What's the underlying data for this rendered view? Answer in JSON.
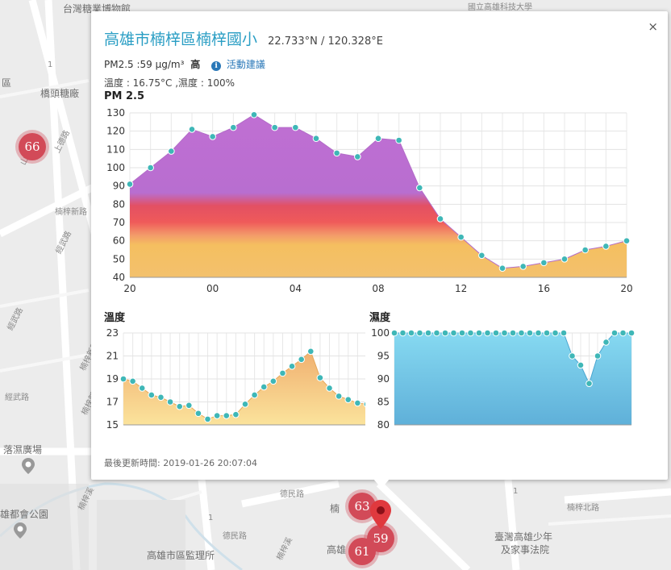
{
  "map": {
    "labels": [
      "台灣糖業博物館",
      "橋頭糖廠",
      "區",
      "上德路",
      "山德路",
      "德民路",
      "德民路",
      "楠梓溪",
      "楠梓溪",
      "落濕廣場",
      "雄都會公園",
      "高雄市區監理所",
      "臺灣高雄少年",
      "及家事法院",
      "高雄",
      "楠",
      "國立高雄科技大學",
      "楠梓北路",
      "經武路",
      "經武路",
      "經武路",
      "楠梓新路",
      "楠梓新路",
      "楠梓新路",
      "1",
      "1",
      "1"
    ],
    "clusters": [
      "66",
      "63",
      "59",
      "61"
    ]
  },
  "popup": {
    "close_label": "×",
    "site_name": "高雄市楠梓區楠梓國小",
    "coords": "22.733°N / 120.328°E",
    "pm_text": "PM2.5 :59 μg/m³",
    "pm_level": "高",
    "info_icon": "i",
    "advice_link": "活動建議",
    "weather_text": "溫度 : 16.75°C ,濕度 : 100%",
    "pm_heading": "PM 2.5",
    "temp_heading": "溫度",
    "hum_heading": "濕度",
    "updated_text": "最後更新時間: 2019-01-26 20:07:04"
  },
  "chart_data": [
    {
      "type": "area",
      "title": "PM 2.5",
      "x_tick_labels": [
        "20",
        "00",
        "04",
        "08",
        "12",
        "16",
        "20"
      ],
      "x_hours": [
        20,
        21,
        22,
        23,
        0,
        1,
        2,
        3,
        4,
        5,
        6,
        7,
        8,
        9,
        10,
        11,
        12,
        13,
        14,
        15,
        16,
        17,
        18,
        19,
        20
      ],
      "values": [
        91,
        100,
        109,
        121,
        117,
        122,
        129,
        122,
        122,
        116,
        108,
        106,
        116,
        115,
        89,
        72,
        62,
        52,
        45,
        46,
        48,
        50,
        55,
        57,
        60
      ],
      "ylim": [
        40,
        130
      ],
      "y_ticks": [
        40,
        50,
        60,
        70,
        80,
        90,
        100,
        110,
        120,
        130
      ],
      "color": "#c278d0"
    },
    {
      "type": "area",
      "title": "溫度",
      "values": [
        19,
        18.8,
        18.2,
        17.6,
        17.4,
        17,
        16.6,
        16.7,
        16,
        15.5,
        15.8,
        15.8,
        15.9,
        16.8,
        17.6,
        18.3,
        18.8,
        19.5,
        20.1,
        20.7,
        21.4,
        19.1,
        18.2,
        17.5,
        17.2,
        16.9,
        16.8
      ],
      "ylim": [
        15,
        23
      ],
      "y_ticks": [
        15,
        17,
        19,
        21,
        23
      ],
      "color": "#f3cc7c"
    },
    {
      "type": "area",
      "title": "濕度",
      "values": [
        100,
        100,
        100,
        100,
        100,
        100,
        100,
        100,
        100,
        100,
        100,
        100,
        100,
        100,
        100,
        100,
        100,
        100,
        100,
        100,
        100,
        95,
        93,
        89,
        95,
        98,
        100,
        100,
        100
      ],
      "ylim": [
        80,
        100
      ],
      "y_ticks": [
        80,
        85,
        90,
        95,
        100
      ],
      "color": "#7fd0ea"
    }
  ]
}
